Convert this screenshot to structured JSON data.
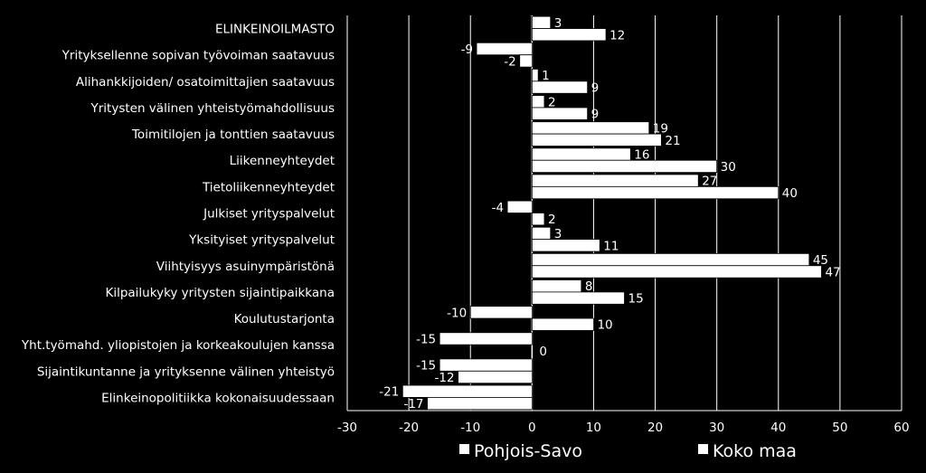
{
  "chart_data": {
    "type": "bar",
    "orientation": "horizontal",
    "categories": [
      "ELINKEINOILMASTO",
      "Yrityksellenne sopivan työvoiman saatavuus",
      "Alihankkijoiden/ osatoimittajien saatavuus",
      "Yritysten välinen yhteistyömahdollisuus",
      "Toimitilojen ja tonttien saatavuus",
      "Liikenneyhteydet",
      "Tietoliikenneyhteydet",
      "Julkiset yrityspalvelut",
      "Yksityiset yrityspalvelut",
      "Viihtyisyys asuinympäristönä",
      "Kilpailukyky yritysten sijaintipaikkana",
      "Koulutustarjonta",
      "Yht.työmahd. yliopistojen ja korkeakoulujen kanssa",
      "Sijaintikuntanne ja yrityksenne välinen yhteistyö",
      "Elinkeinopolitiikka kokonaisuudessaan"
    ],
    "series": [
      {
        "name": "Pohjois-Savo",
        "values": [
          3,
          -9,
          1,
          2,
          19,
          16,
          27,
          -4,
          3,
          45,
          8,
          -10,
          -15,
          -15,
          -21
        ]
      },
      {
        "name": "Koko maa",
        "values": [
          12,
          -2,
          9,
          9,
          21,
          30,
          40,
          2,
          11,
          47,
          15,
          10,
          0,
          -12,
          -17
        ]
      }
    ],
    "xlim": [
      -30,
      60
    ],
    "ticks": [
      -30,
      -20,
      -10,
      0,
      10,
      20,
      30,
      40,
      50,
      60
    ],
    "tick_labels": [
      "-30",
      "-20",
      "-10",
      "0",
      "10",
      "20",
      "30",
      "40",
      "50",
      "60"
    ],
    "grid": true,
    "legend": "bottom",
    "colors": {
      "background": "#000000",
      "bars": "#ffffff",
      "grid": "#ffffff",
      "bar_outline": "#000000"
    }
  }
}
